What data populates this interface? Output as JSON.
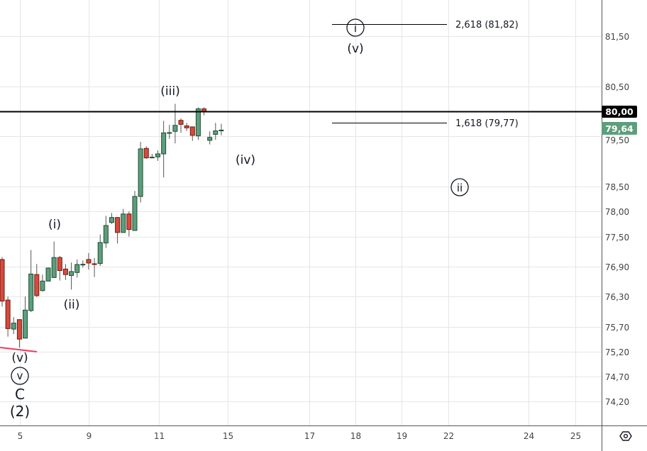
{
  "chart_data": {
    "type": "candlestick",
    "title": "",
    "xlabel": "",
    "ylabel": "",
    "ylim": [
      73.9,
      82.3
    ],
    "grid": true,
    "colors": {
      "up": "#5d9e7c",
      "down": "#d74a3c",
      "up_border": "#1f4d33",
      "down_border": "#6b1a12",
      "wick": "#555555",
      "last_price_bg": "#5d9e7c",
      "level_bg": "#000000",
      "trendline": "#f03c5a"
    },
    "x_ticks": [
      "5",
      "9",
      "11",
      "15",
      "17",
      "18",
      "19",
      "22",
      "24",
      "25"
    ],
    "y_ticks": [
      "81,50",
      "80,50",
      "80,00",
      "79,50",
      "78,50",
      "78,00",
      "77,50",
      "76,90",
      "76,30",
      "75,70",
      "75,20",
      "74,70",
      "74,20"
    ],
    "y_tick_values": [
      81.5,
      80.5,
      80.0,
      79.5,
      78.5,
      78.0,
      77.5,
      76.9,
      76.3,
      75.7,
      75.2,
      74.7,
      74.2
    ],
    "candles": [
      {
        "o": 77.04,
        "h": 77.09,
        "l": 76.1,
        "c": 76.21
      },
      {
        "o": 76.23,
        "h": 76.3,
        "l": 75.5,
        "c": 75.66
      },
      {
        "o": 75.65,
        "h": 75.89,
        "l": 75.55,
        "c": 75.77
      },
      {
        "o": 75.84,
        "h": 75.84,
        "l": 75.28,
        "c": 75.45
      },
      {
        "o": 75.47,
        "h": 76.3,
        "l": 75.47,
        "c": 76.03
      },
      {
        "o": 76.02,
        "h": 77.23,
        "l": 75.99,
        "c": 76.75
      },
      {
        "o": 76.74,
        "h": 76.95,
        "l": 76.29,
        "c": 76.32
      },
      {
        "o": 76.42,
        "h": 76.74,
        "l": 76.4,
        "c": 76.61
      },
      {
        "o": 76.61,
        "h": 76.88,
        "l": 76.6,
        "c": 76.87
      },
      {
        "o": 76.68,
        "h": 77.4,
        "l": 76.68,
        "c": 77.08
      },
      {
        "o": 77.08,
        "h": 77.11,
        "l": 76.62,
        "c": 76.82
      },
      {
        "o": 76.85,
        "h": 76.95,
        "l": 76.63,
        "c": 76.74
      },
      {
        "o": 76.72,
        "h": 76.98,
        "l": 76.44,
        "c": 76.8
      },
      {
        "o": 76.78,
        "h": 77.04,
        "l": 76.68,
        "c": 76.94
      },
      {
        "o": 76.94,
        "h": 77.02,
        "l": 76.88,
        "c": 76.945
      },
      {
        "o": 77.04,
        "h": 77.17,
        "l": 76.84,
        "c": 76.97
      },
      {
        "o": 76.955,
        "h": 77.07,
        "l": 76.69,
        "c": 76.945
      },
      {
        "o": 76.96,
        "h": 77.54,
        "l": 76.91,
        "c": 77.38
      },
      {
        "o": 77.37,
        "h": 77.91,
        "l": 77.27,
        "c": 77.72
      },
      {
        "o": 77.78,
        "h": 77.97,
        "l": 77.75,
        "c": 77.88
      },
      {
        "o": 77.88,
        "h": 77.88,
        "l": 77.36,
        "c": 77.58
      },
      {
        "o": 77.58,
        "h": 78.05,
        "l": 77.58,
        "c": 77.95
      },
      {
        "o": 77.95,
        "h": 78.0,
        "l": 77.5,
        "c": 77.64
      },
      {
        "o": 77.62,
        "h": 78.41,
        "l": 77.62,
        "c": 78.3
      },
      {
        "o": 78.3,
        "h": 79.39,
        "l": 78.18,
        "c": 79.25
      },
      {
        "o": 79.26,
        "h": 79.3,
        "l": 79.05,
        "c": 79.07
      },
      {
        "o": 79.08,
        "h": 79.15,
        "l": 79.06,
        "c": 79.085
      },
      {
        "o": 79.09,
        "h": 79.22,
        "l": 79.01,
        "c": 79.15
      },
      {
        "o": 79.15,
        "h": 79.81,
        "l": 78.68,
        "c": 79.57
      },
      {
        "o": 79.57,
        "h": 79.73,
        "l": 79.45,
        "c": 79.575
      },
      {
        "o": 79.6,
        "h": 80.15,
        "l": 79.36,
        "c": 79.72
      },
      {
        "o": 79.82,
        "h": 79.86,
        "l": 79.57,
        "c": 79.74
      },
      {
        "o": 79.71,
        "h": 79.77,
        "l": 79.61,
        "c": 79.67
      },
      {
        "o": 79.69,
        "h": 79.69,
        "l": 79.41,
        "c": 79.52
      },
      {
        "o": 79.51,
        "h": 80.08,
        "l": 79.43,
        "c": 80.05
      },
      {
        "o": 80.05,
        "h": 80.08,
        "l": 79.92,
        "c": 79.99
      },
      {
        "o": 79.42,
        "h": 79.6,
        "l": 79.34,
        "c": 79.48
      },
      {
        "o": 79.54,
        "h": 79.77,
        "l": 79.43,
        "c": 79.61
      },
      {
        "o": 79.62,
        "h": 79.75,
        "l": 79.52,
        "c": 79.625
      }
    ],
    "horizontal_level": {
      "value": 80.0,
      "label": "80,00"
    },
    "last_price": {
      "value": 79.64,
      "label": "79,64"
    },
    "fib_levels": [
      {
        "value": 81.82,
        "label": "2,618 (81,82)"
      },
      {
        "value": 79.77,
        "label": "1,618 (79,77)"
      }
    ],
    "wave_labels": {
      "iii": "(iii)",
      "iv": "(iv)",
      "i": "(i)",
      "ii": "(ii)",
      "v_low": "(v)",
      "circled_v": "v",
      "c": "C",
      "two": "(2)",
      "circled_i": "i",
      "v_top": "(v)",
      "circled_ii": "ii"
    }
  },
  "toolbar": {
    "settings_icon": "settings-hexagon-icon"
  }
}
